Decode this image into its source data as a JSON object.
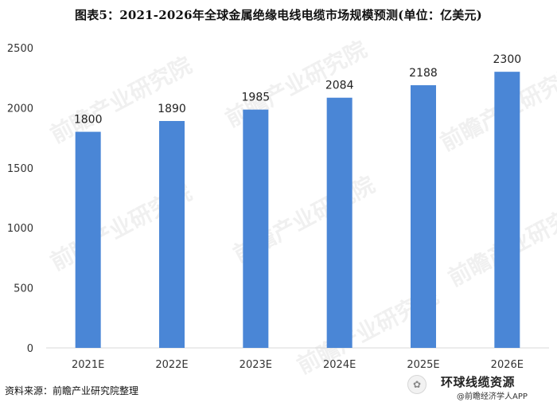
{
  "title": "图表5：2021-2026年全球金属绝缘电线电缆市场规模预测(单位：亿美元)",
  "source": "资料来源：前瞻产业研究院整理",
  "watermark": "前瞻产业研究院",
  "brand": {
    "name": "环球线缆资源",
    "sub": "@前瞻经济学人APP",
    "icon": "wechat-icon"
  },
  "colors": {
    "bar": "#4a86d6",
    "axis": "#d9d9d9",
    "text": "#333333"
  },
  "chart_data": {
    "type": "bar",
    "categories": [
      "2021E",
      "2022E",
      "2023E",
      "2024E",
      "2025E",
      "2026E"
    ],
    "values": [
      1800,
      1890,
      1985,
      2084,
      2188,
      2300
    ],
    "yticks": [
      0,
      500,
      1000,
      1500,
      2000,
      2500
    ],
    "ylim": [
      0,
      2500
    ],
    "grid": false,
    "data_labels": true
  }
}
